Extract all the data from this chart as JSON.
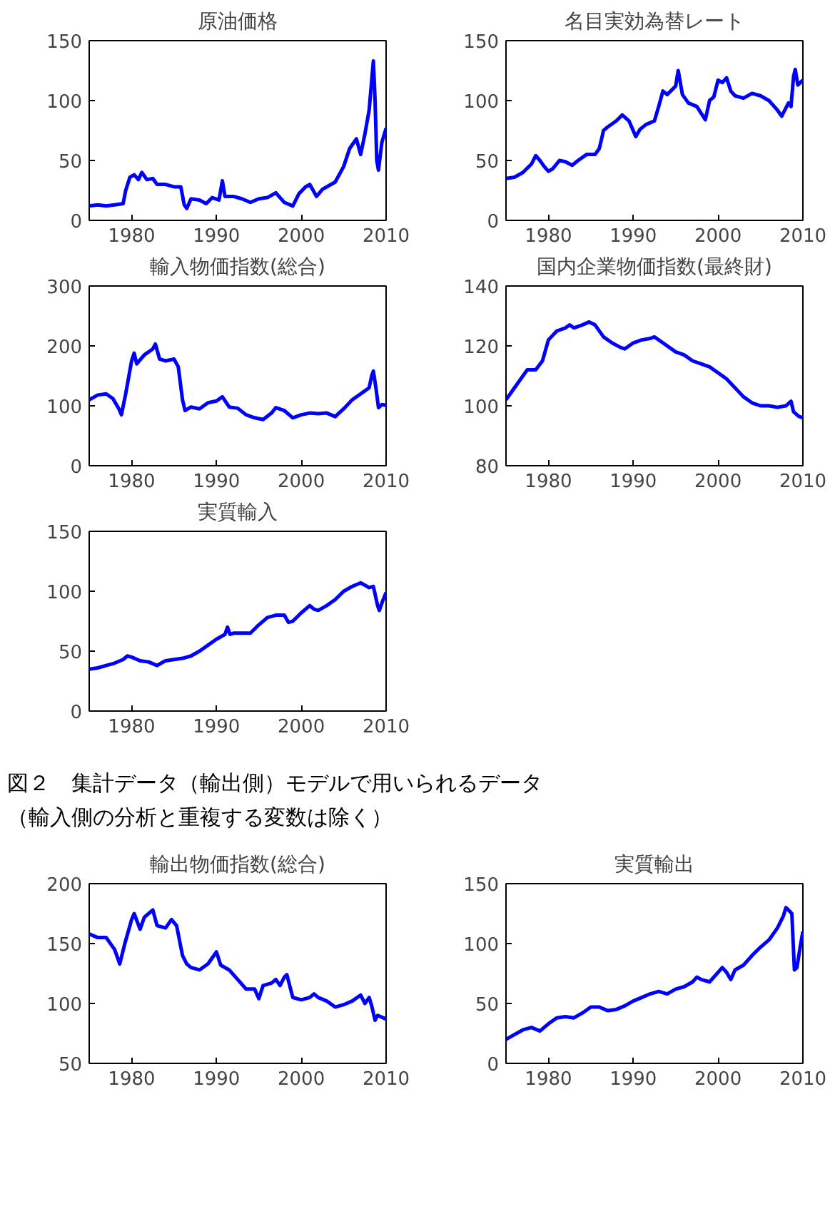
{
  "chart_data": [
    {
      "type": "line",
      "title": "原油価格",
      "xlim": [
        1975,
        2010
      ],
      "xticks": [
        1980,
        1990,
        2000,
        2010
      ],
      "ylim": [
        0,
        150
      ],
      "yticks": [
        0,
        50,
        100,
        150
      ],
      "grid": false,
      "series": [
        {
          "color": "#0000ff",
          "x": [
            1975,
            1976,
            1977,
            1978,
            1979,
            1979.3,
            1979.8,
            1980.3,
            1980.8,
            1981.2,
            1981.8,
            1982.5,
            1983,
            1984,
            1985,
            1985.8,
            1986.2,
            1986.5,
            1987,
            1988,
            1988.8,
            1989.5,
            1990.3,
            1990.7,
            1991,
            1992,
            1993,
            1994,
            1995,
            1996,
            1997,
            1998,
            1999,
            1999.7,
            2000.5,
            2001,
            2001.8,
            2002.5,
            2003,
            2004,
            2005,
            2005.7,
            2006.5,
            2007,
            2007.5,
            2008,
            2008.4,
            2008.5,
            2008.7,
            2008.9,
            2009.1,
            2009.5,
            2010
          ],
          "values": [
            12,
            13,
            12,
            13,
            14,
            25,
            36,
            38,
            34,
            40,
            34,
            35,
            30,
            30,
            28,
            28,
            13,
            10,
            18,
            17,
            14,
            19,
            17,
            33,
            20,
            20,
            18,
            15,
            18,
            19,
            23,
            15,
            12,
            22,
            28,
            30,
            20,
            26,
            28,
            32,
            45,
            60,
            68,
            55,
            72,
            92,
            125,
            133,
            100,
            50,
            42,
            65,
            77
          ]
        }
      ]
    },
    {
      "type": "line",
      "title": "名目実効為替レート",
      "xlim": [
        1975,
        2010
      ],
      "xticks": [
        1980,
        1990,
        2000,
        2010
      ],
      "ylim": [
        0,
        150
      ],
      "yticks": [
        0,
        50,
        100,
        150
      ],
      "grid": false,
      "series": [
        {
          "color": "#0000ff",
          "x": [
            1975,
            1976,
            1977,
            1978,
            1978.5,
            1979,
            1979.5,
            1980,
            1980.5,
            1981.3,
            1982,
            1982.8,
            1983.5,
            1984.5,
            1985.5,
            1986,
            1986.5,
            1987,
            1988,
            1988.7,
            1989.5,
            1990.3,
            1990.8,
            1991.5,
            1992.5,
            1993,
            1993.5,
            1994,
            1995,
            1995.3,
            1995.8,
            1996.5,
            1997.5,
            1998.5,
            1999,
            1999.5,
            2000,
            2000.5,
            2001,
            2001.5,
            2002,
            2003,
            2004,
            2005,
            2006,
            2007,
            2007.5,
            2008.3,
            2008.6,
            2008.9,
            2009.1,
            2009.4,
            2010
          ],
          "values": [
            35,
            36,
            40,
            47,
            54,
            50,
            45,
            41,
            43,
            50,
            49,
            46,
            50,
            55,
            55,
            60,
            75,
            78,
            83,
            88,
            83,
            70,
            76,
            80,
            83,
            95,
            108,
            105,
            112,
            125,
            105,
            98,
            95,
            84,
            100,
            103,
            117,
            115,
            119,
            108,
            104,
            102,
            106,
            104,
            100,
            92,
            87,
            98,
            95,
            120,
            126,
            113,
            117
          ]
        }
      ]
    },
    {
      "type": "line",
      "title": "輸入物価指数(総合)",
      "xlim": [
        1975,
        2010
      ],
      "xticks": [
        1980,
        1990,
        2000,
        2010
      ],
      "ylim": [
        0,
        300
      ],
      "yticks": [
        0,
        100,
        200,
        300
      ],
      "grid": false,
      "series": [
        {
          "color": "#0000ff",
          "x": [
            1975,
            1976,
            1977,
            1977.8,
            1978.5,
            1978.8,
            1979.3,
            1980,
            1980.3,
            1980.6,
            1981.5,
            1982.5,
            1982.8,
            1983.3,
            1984,
            1985,
            1985.5,
            1986,
            1986.3,
            1987,
            1988,
            1989,
            1990,
            1990.7,
            1991.5,
            1992.5,
            1993.5,
            1994.5,
            1995.5,
            1996.5,
            1997,
            1998,
            1999,
            2000,
            2001,
            2002,
            2003,
            2004,
            2005,
            2006,
            2007,
            2008,
            2008.3,
            2008.5,
            2008.8,
            2009.1,
            2009.5,
            2010
          ],
          "values": [
            110,
            118,
            120,
            112,
            95,
            85,
            120,
            175,
            188,
            170,
            185,
            195,
            203,
            178,
            175,
            178,
            165,
            110,
            92,
            98,
            95,
            105,
            108,
            115,
            98,
            96,
            85,
            80,
            77,
            88,
            97,
            92,
            80,
            85,
            88,
            87,
            88,
            82,
            95,
            110,
            120,
            130,
            150,
            158,
            130,
            97,
            102,
            101
          ]
        }
      ]
    },
    {
      "type": "line",
      "title": "国内企業物価指数(最終財)",
      "xlim": [
        1975,
        2010
      ],
      "xticks": [
        1980,
        1990,
        2000,
        2010
      ],
      "ylim": [
        80,
        140
      ],
      "yticks": [
        80,
        100,
        120,
        140
      ],
      "grid": false,
      "series": [
        {
          "color": "#0000ff",
          "x": [
            1975,
            1976,
            1977,
            1977.5,
            1978.5,
            1979.3,
            1980,
            1981,
            1982,
            1982.5,
            1983,
            1984,
            1984.8,
            1985.5,
            1986.5,
            1987.5,
            1988.5,
            1989,
            1990,
            1991,
            1992,
            1992.5,
            1993.5,
            1995,
            1996,
            1997,
            1998,
            1999,
            2000,
            2001,
            2002,
            2003,
            2004,
            2005,
            2006,
            2007,
            2008,
            2008.6,
            2008.9,
            2009.5,
            2010
          ],
          "values": [
            102,
            106,
            110,
            112,
            112,
            115,
            122,
            125,
            126,
            127,
            126,
            127,
            128,
            127,
            123,
            121,
            119.5,
            119,
            121,
            122,
            122.5,
            123,
            121,
            118,
            117,
            115,
            114,
            113,
            111,
            109,
            106,
            103,
            101,
            100,
            100,
            99.5,
            100,
            101.5,
            98,
            96.5,
            96
          ]
        }
      ]
    },
    {
      "type": "line",
      "title": "実質輸入",
      "xlim": [
        1975,
        2010
      ],
      "xticks": [
        1980,
        1990,
        2000,
        2010
      ],
      "ylim": [
        0,
        150
      ],
      "yticks": [
        0,
        50,
        100,
        150
      ],
      "grid": false,
      "series": [
        {
          "color": "#0000ff",
          "x": [
            1975,
            1976,
            1977,
            1978,
            1979,
            1979.5,
            1980,
            1981,
            1982,
            1983,
            1983.5,
            1984,
            1985,
            1986,
            1987,
            1988,
            1989,
            1990,
            1991,
            1991.3,
            1991.6,
            1992,
            1993,
            1994,
            1995,
            1996,
            1997,
            1998,
            1998.5,
            1999,
            2000,
            2001,
            2001.5,
            2002,
            2003,
            2004,
            2005,
            2006,
            2007,
            2008,
            2008.5,
            2009,
            2009.2,
            2009.6,
            2010
          ],
          "values": [
            35,
            36,
            38,
            40,
            43,
            46,
            45,
            42,
            41,
            38,
            40,
            42,
            43,
            44,
            46,
            50,
            55,
            60,
            64,
            70,
            64,
            65,
            65,
            65,
            72,
            78,
            80,
            80,
            74,
            75,
            82,
            88,
            85,
            84,
            88,
            93,
            100,
            104,
            107,
            103,
            104,
            88,
            84,
            92,
            99
          ]
        }
      ]
    },
    {
      "type": "line",
      "title": "輸出物価指数(総合)",
      "annotations": [
        "図２　集計データ（輸出側）モデルで用いられるデータ",
        "（輸入側の分析と重複する変数は除く）"
      ],
      "xlim": [
        1975,
        2010
      ],
      "xticks": [
        1980,
        1990,
        2000,
        2010
      ],
      "ylim": [
        50,
        200
      ],
      "yticks": [
        50,
        100,
        150,
        200
      ],
      "grid": false,
      "series": [
        {
          "color": "#0000ff",
          "x": [
            1975,
            1976,
            1977,
            1978,
            1978.6,
            1979.2,
            1980,
            1980.3,
            1981,
            1981.5,
            1982,
            1982.5,
            1983,
            1984,
            1984.7,
            1985.3,
            1986,
            1986.5,
            1987,
            1988,
            1989,
            1990,
            1990.5,
            1991.5,
            1992.5,
            1993.5,
            1994.5,
            1995,
            1995.5,
            1996.5,
            1997,
            1997.5,
            1998,
            1998.3,
            1999,
            2000,
            2001,
            2001.5,
            2002,
            2003,
            2004,
            2005,
            2006,
            2007,
            2007.5,
            2008,
            2008.3,
            2008.7,
            2009,
            2010
          ],
          "values": [
            158,
            155,
            155,
            145,
            133,
            150,
            170,
            175,
            162,
            172,
            175,
            178,
            165,
            163,
            170,
            165,
            140,
            133,
            130,
            128,
            133,
            143,
            132,
            128,
            120,
            112,
            112,
            104,
            115,
            117,
            120,
            115,
            122,
            124,
            105,
            103,
            105,
            108,
            105,
            102,
            97,
            99,
            102,
            107,
            100,
            105,
            98,
            86,
            90,
            87
          ]
        }
      ]
    },
    {
      "type": "line",
      "title": "実質輸出",
      "xlim": [
        1975,
        2010
      ],
      "xticks": [
        1980,
        1990,
        2000,
        2010
      ],
      "ylim": [
        0,
        150
      ],
      "yticks": [
        0,
        50,
        100,
        150
      ],
      "grid": false,
      "series": [
        {
          "color": "#0000ff",
          "x": [
            1975,
            1976,
            1977,
            1978,
            1979,
            1980,
            1981,
            1982,
            1983,
            1984,
            1985,
            1986,
            1987,
            1988,
            1989,
            1990,
            1991,
            1992,
            1993,
            1994,
            1995,
            1996,
            1997,
            1997.5,
            1998,
            1999,
            2000,
            2000.5,
            2001,
            2001.5,
            2002,
            2003,
            2004,
            2005,
            2006,
            2007,
            2007.7,
            2008,
            2008.3,
            2008.7,
            2009,
            2009.3,
            2009.7,
            2010
          ],
          "values": [
            20,
            24,
            28,
            30,
            27,
            33,
            38,
            39,
            38,
            42,
            47,
            47,
            44,
            45,
            48,
            52,
            55,
            58,
            60,
            58,
            62,
            64,
            68,
            72,
            70,
            68,
            76,
            80,
            76,
            70,
            78,
            82,
            90,
            97,
            103,
            113,
            123,
            130,
            128,
            125,
            78,
            80,
            98,
            110
          ]
        }
      ]
    }
  ]
}
